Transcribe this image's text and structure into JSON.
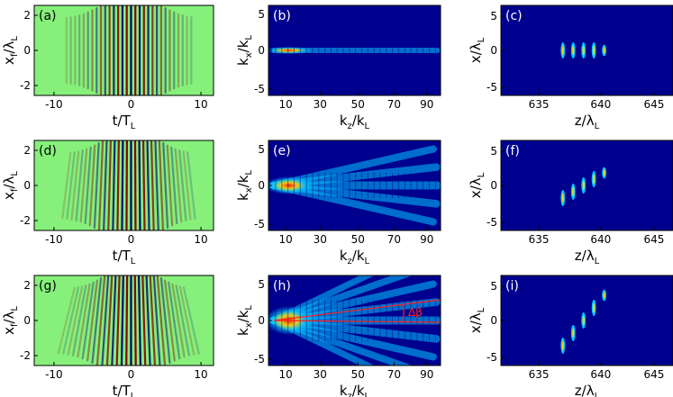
{
  "figure": {
    "colors": {
      "col1_background": "#86f07a",
      "col23_background": "#00008f",
      "positive_fringe": "#8a0000",
      "negative_fringe": "#00007a",
      "spectrum_hot": "#ff2000",
      "spectrum_warm": "#ffd000",
      "spectrum_cool": "#00c8ff",
      "annotation": "#ff2020"
    },
    "columns": [
      {
        "x_label": {
          "main": "t/T",
          "sub": "L"
        },
        "y_label": {
          "main": "x",
          "sub": "f",
          "rest": "/λ",
          "sub2": "L"
        },
        "x_ticks": [
          "-10",
          "0",
          "10"
        ],
        "y_ticks": [
          "2",
          "0",
          "-2"
        ]
      },
      {
        "x_label": {
          "main": "k",
          "sub": "z",
          "rest": "/k",
          "sub2": "L"
        },
        "y_label": {
          "main": "k",
          "sub": "x",
          "rest": "/k",
          "sub2": "L"
        },
        "x_ticks": [
          "10",
          "30",
          "50",
          "70",
          "90"
        ],
        "y_ticks": [
          "5",
          "0",
          "-5"
        ]
      },
      {
        "x_label": {
          "main": "z/λ",
          "sub": "L"
        },
        "y_label": {
          "main": "x/λ",
          "sub": "L"
        },
        "x_ticks": [
          "635",
          "640",
          "645"
        ],
        "y_ticks": [
          "5",
          "0",
          "-5"
        ]
      }
    ],
    "panels": [
      {
        "tag": "(a)",
        "kind": "fringes",
        "row": 0,
        "col": 0,
        "fringe_tilt": 0.0
      },
      {
        "tag": "(b)",
        "kind": "spectrum",
        "row": 0,
        "col": 1,
        "spread": 0.0
      },
      {
        "tag": "(c)",
        "kind": "pulses",
        "row": 0,
        "col": 2,
        "slope": 0.0
      },
      {
        "tag": "(d)",
        "kind": "fringes",
        "row": 1,
        "col": 0,
        "fringe_tilt": 0.25
      },
      {
        "tag": "(e)",
        "kind": "spectrum",
        "row": 1,
        "col": 1,
        "spread": 0.5
      },
      {
        "tag": "(f)",
        "kind": "pulses",
        "row": 1,
        "col": 2,
        "slope": 0.5
      },
      {
        "tag": "(g)",
        "kind": "fringes",
        "row": 2,
        "col": 0,
        "fringe_tilt": 0.5
      },
      {
        "tag": "(h)",
        "kind": "spectrum",
        "row": 2,
        "col": 1,
        "spread": 1.0,
        "annotation": "Δβ"
      },
      {
        "tag": "(i)",
        "kind": "pulses",
        "row": 2,
        "col": 2,
        "slope": 1.0
      }
    ]
  }
}
